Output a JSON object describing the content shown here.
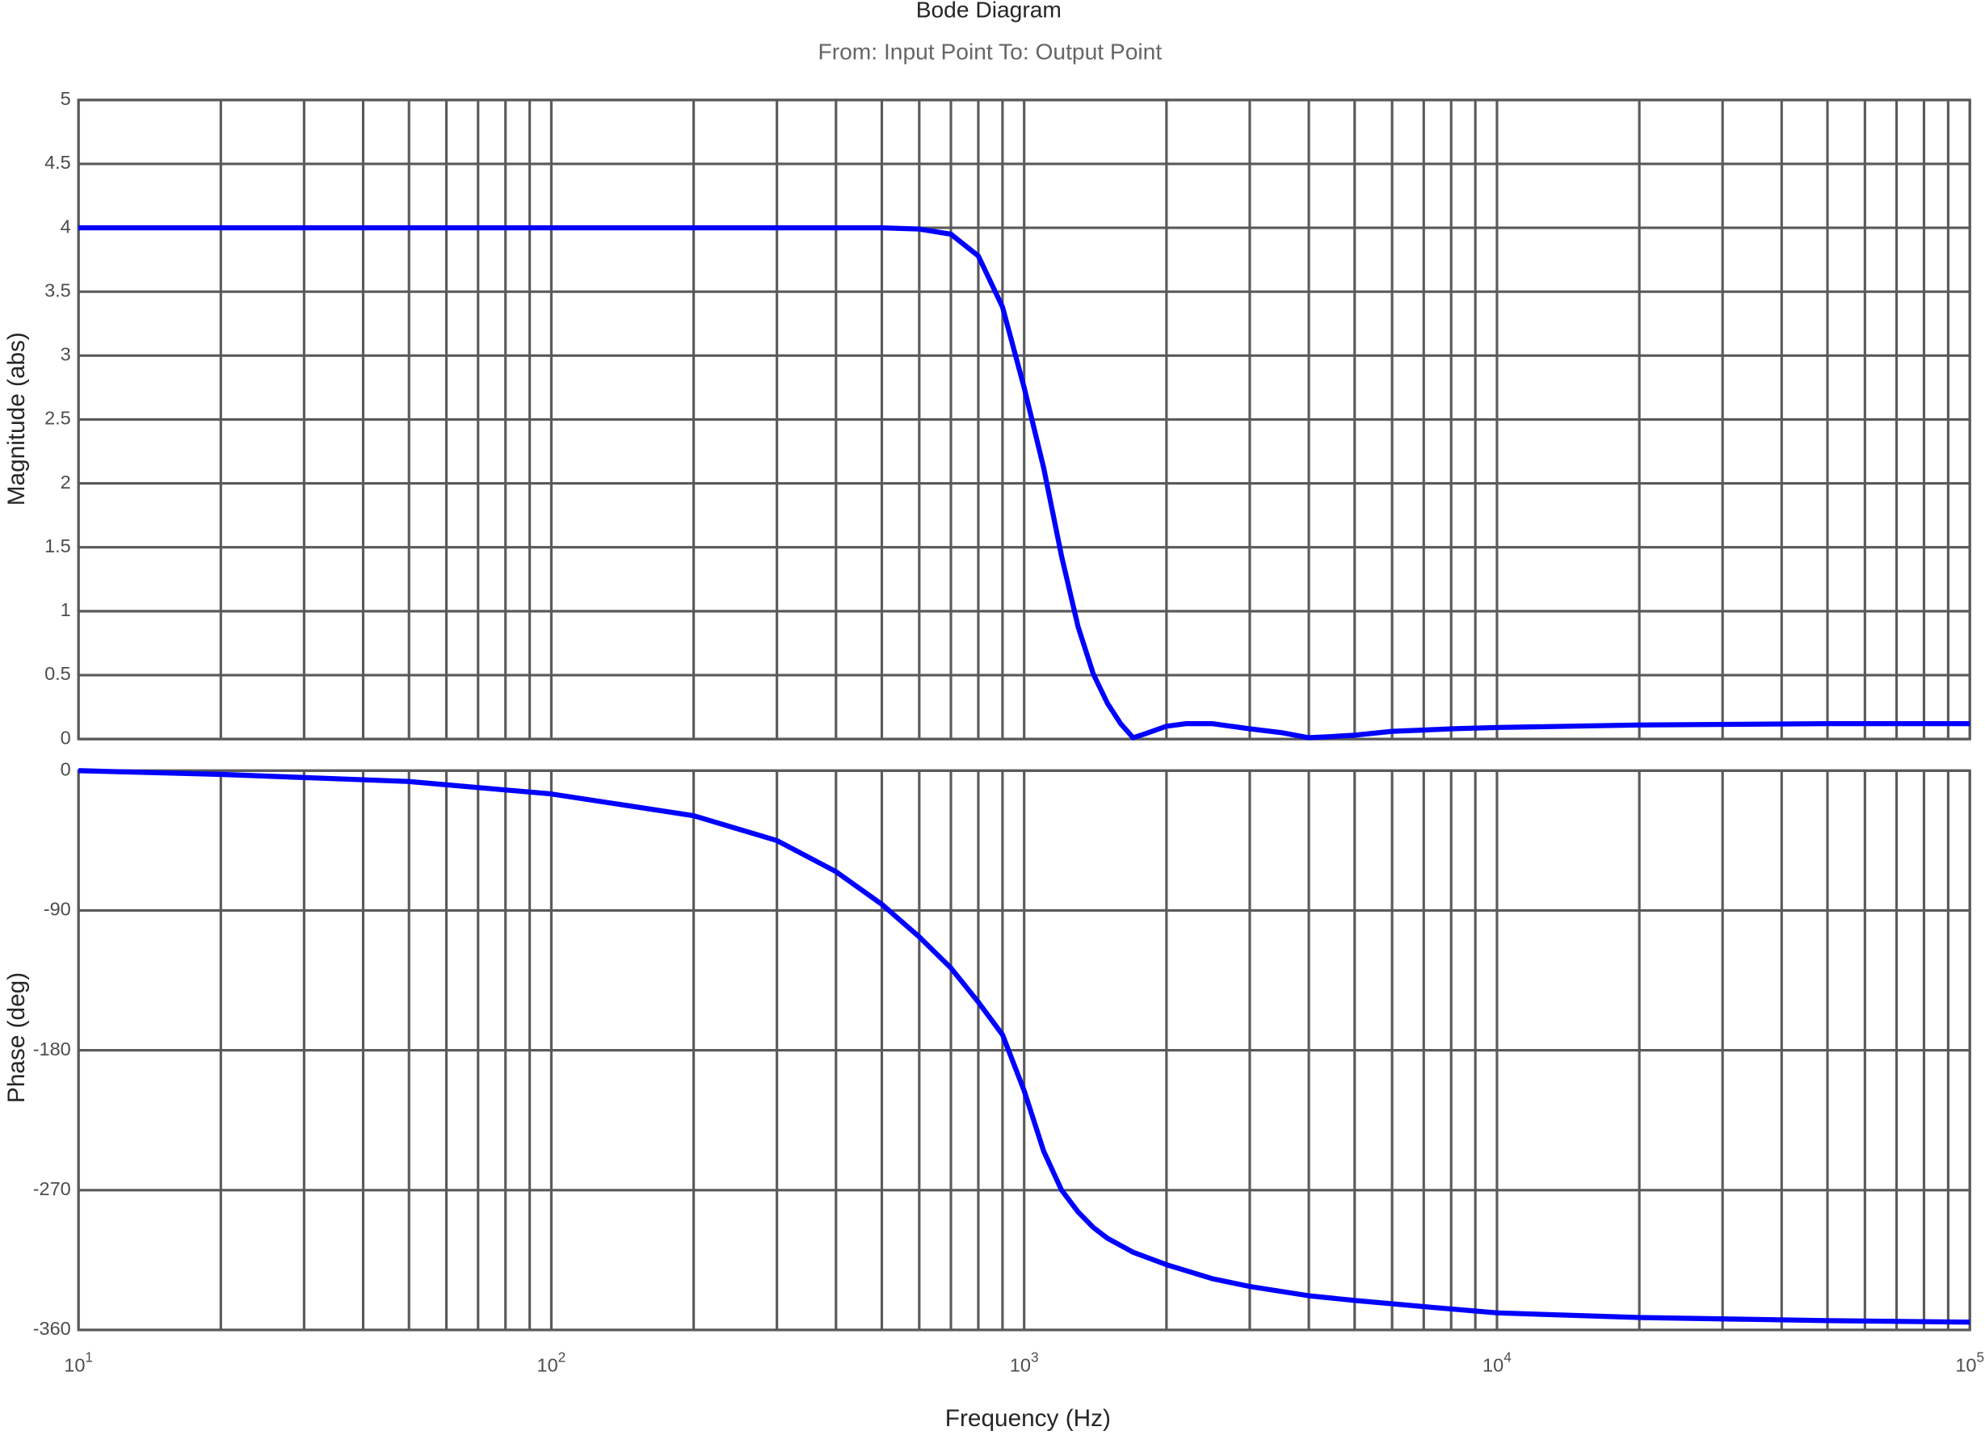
{
  "chart_data": [
    {
      "type": "line",
      "title": "Bode Diagram",
      "subtitle": "From: Input Point  To: Output Point",
      "y_label": "Magnitude (abs)",
      "log_x": true,
      "grid": true,
      "minor_grid": true,
      "xlim": [
        10,
        100000
      ],
      "xticks": [
        {
          "value": 10,
          "label": "10^1"
        },
        {
          "value": 100,
          "label": "10^2"
        },
        {
          "value": 1000,
          "label": "10^3"
        },
        {
          "value": 10000,
          "label": "10^4"
        },
        {
          "value": 100000,
          "label": "10^5"
        }
      ],
      "ylim": [
        0,
        5
      ],
      "yticks": [
        0,
        0.5,
        1,
        1.5,
        2,
        2.5,
        3,
        3.5,
        4,
        4.5,
        5
      ],
      "x": [
        10,
        20,
        50,
        100,
        200,
        300,
        400,
        500,
        600,
        700,
        800,
        900,
        1000,
        1100,
        1200,
        1300,
        1400,
        1500,
        1600,
        1700,
        1800,
        2000,
        2200,
        2500,
        3000,
        3500,
        4000,
        4500,
        5000,
        6000,
        7000,
        8000,
        10000,
        20000,
        50000,
        100000
      ],
      "series": [
        {
          "color": "#0000ff",
          "values": [
            4,
            4,
            4,
            4,
            4,
            4,
            4,
            4,
            3.99,
            3.95,
            3.78,
            3.38,
            2.75,
            2.12,
            1.43,
            0.88,
            0.51,
            0.28,
            0.12,
            0.01,
            0.04,
            0.1,
            0.12,
            0.12,
            0.08,
            0.05,
            0.01,
            0.02,
            0.03,
            0.06,
            0.07,
            0.08,
            0.09,
            0.11,
            0.12,
            0.12
          ]
        }
      ]
    },
    {
      "type": "line",
      "x_label": "Frequency  (Hz)",
      "y_label": "Phase (deg)",
      "log_x": true,
      "grid": true,
      "minor_grid": true,
      "xlim": [
        10,
        100000
      ],
      "xticks": [
        {
          "value": 10,
          "label": "10^1"
        },
        {
          "value": 100,
          "label": "10^2"
        },
        {
          "value": 1000,
          "label": "10^3"
        },
        {
          "value": 10000,
          "label": "10^4"
        },
        {
          "value": 100000,
          "label": "10^5"
        }
      ],
      "ylim": [
        -360,
        0
      ],
      "yticks": [
        -360,
        -270,
        -180,
        -90,
        0
      ],
      "x": [
        10,
        20,
        50,
        100,
        200,
        300,
        400,
        500,
        600,
        700,
        800,
        900,
        1000,
        1100,
        1200,
        1300,
        1400,
        1500,
        1700,
        2000,
        2500,
        3000,
        4000,
        5000,
        7000,
        10000,
        20000,
        50000,
        100000
      ],
      "series": [
        {
          "color": "#0000ff",
          "values": [
            0,
            -2.4,
            -7,
            -15,
            -29,
            -45,
            -65,
            -86,
            -107,
            -127,
            -149,
            -170,
            -206,
            -245,
            -270,
            -284,
            -294,
            -301,
            -310,
            -318,
            -327,
            -332,
            -338,
            -341,
            -345,
            -349,
            -352,
            -354,
            -355
          ]
        }
      ]
    }
  ]
}
